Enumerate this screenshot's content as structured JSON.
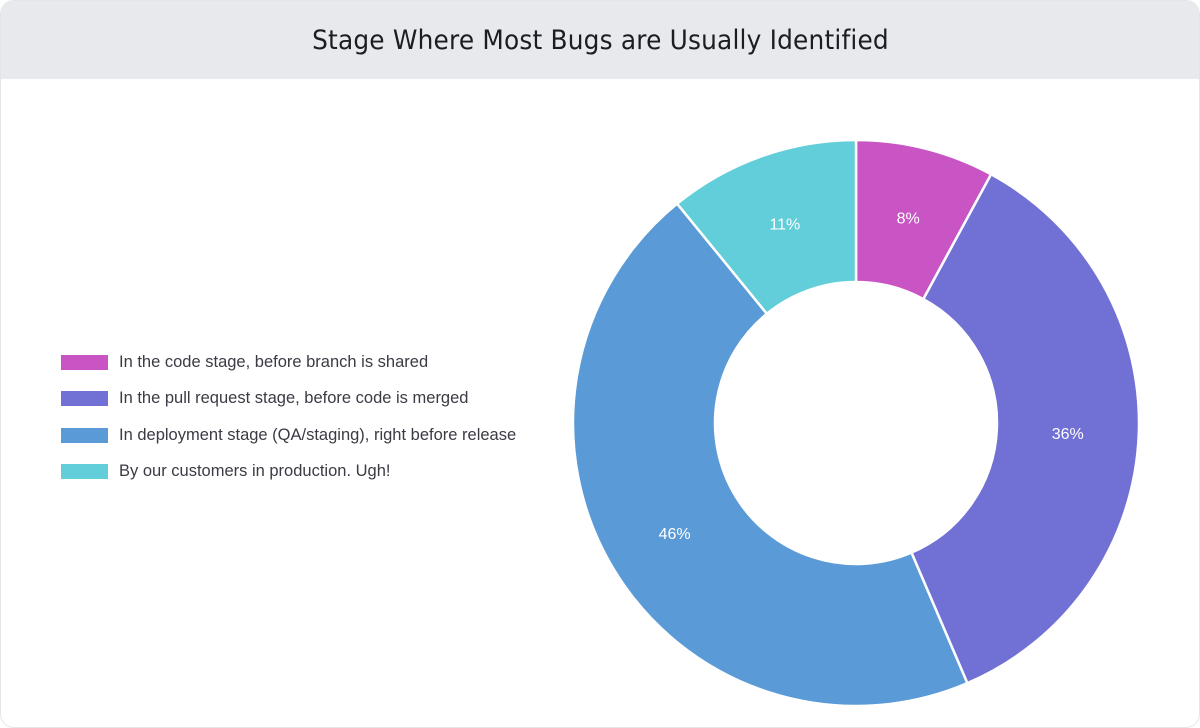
{
  "header": {
    "title": "Stage Where Most Bugs are Usually Identified"
  },
  "legend": {
    "items": [
      {
        "label": "In the code stage, before branch is shared",
        "color": "#c955c4"
      },
      {
        "label": "In the pull request stage, before code is merged",
        "color": "#7170d4"
      },
      {
        "label": "In deployment stage (QA/staging), right before release",
        "color": "#5a9ad6"
      },
      {
        "label": "By our customers in production. Ugh!",
        "color": "#62ced9"
      }
    ]
  },
  "chart_data": {
    "type": "pie",
    "variant": "donut",
    "title": "Stage Where Most Bugs are Usually Identified",
    "categories": [
      "In the code stage, before branch is shared",
      "In the pull request stage, before code is merged",
      "In deployment stage (QA/staging), right before release",
      "By our customers in production. Ugh!"
    ],
    "values": [
      8,
      36,
      46,
      11
    ],
    "unit": "%",
    "data_labels": [
      "8%",
      "36%",
      "46%",
      "11%"
    ],
    "colors": [
      "#c955c4",
      "#7170d4",
      "#5a9ad6",
      "#62ced9"
    ],
    "start_angle_deg": 0,
    "direction": "clockwise",
    "legend_position": "left",
    "xlabel": "",
    "ylabel": ""
  }
}
